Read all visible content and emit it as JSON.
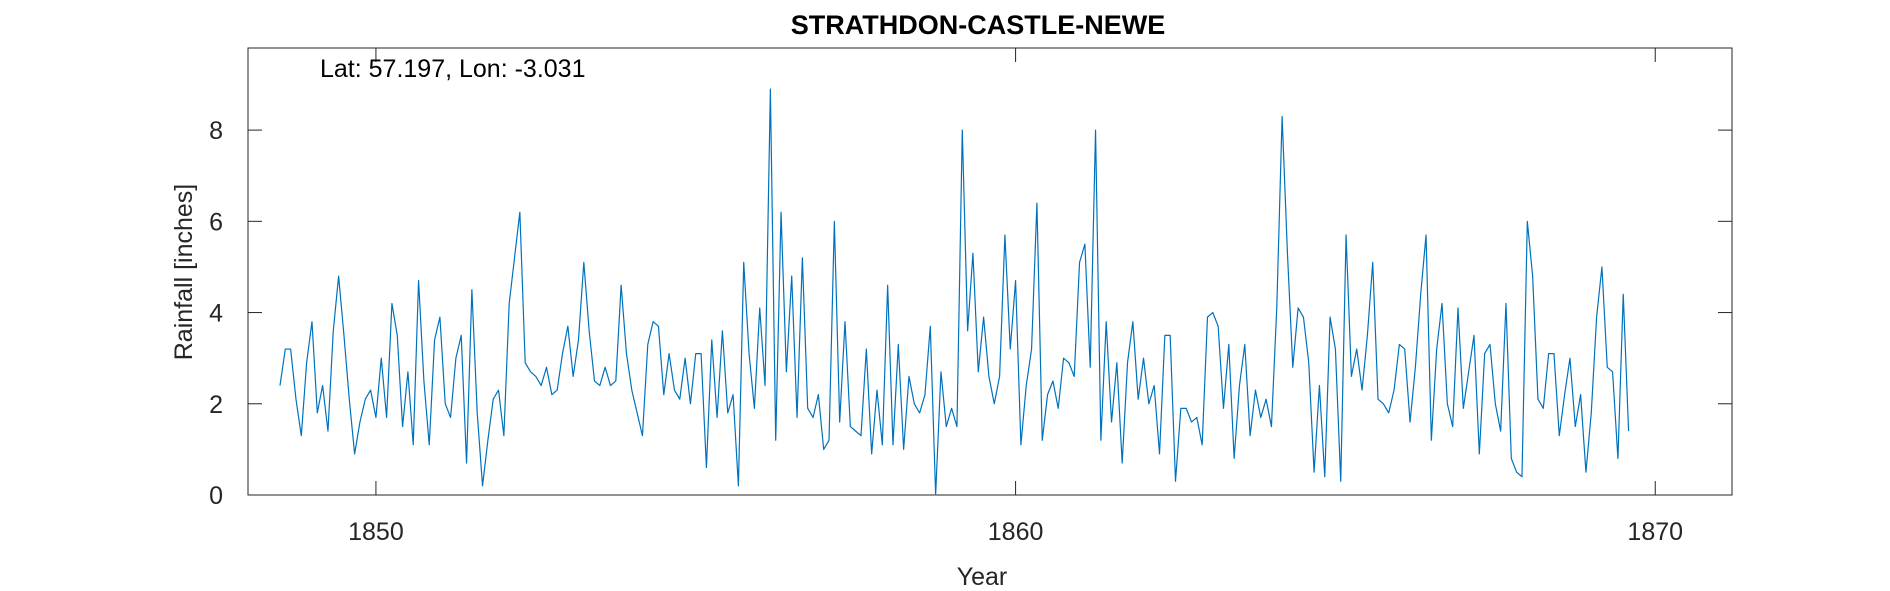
{
  "chart_data": {
    "type": "line",
    "title": "STRATHDON-CASTLE-NEWE",
    "annotation": "Lat: 57.197, Lon: -3.031",
    "xlabel": "Year",
    "ylabel": "Rainfall [inches]",
    "xlim": [
      1848,
      1871.2
    ],
    "ylim": [
      0,
      9.8
    ],
    "xticks": [
      1850,
      1860,
      1870
    ],
    "xtick_labels": [
      "1850",
      "1860",
      "1870"
    ],
    "yticks": [
      0,
      2,
      4,
      6,
      8
    ],
    "ytick_labels": [
      "0",
      "2",
      "4",
      "6",
      "8"
    ],
    "grid": false,
    "series_color": "#0072BD",
    "x_start": 1848.5,
    "x_step": 0.083333,
    "series": [
      {
        "values": [
          2.4,
          3.2,
          3.2,
          2.1,
          1.3,
          2.9,
          3.8,
          1.8,
          2.4,
          1.4,
          3.6,
          4.8,
          3.5,
          2.1,
          0.9,
          1.6,
          2.1,
          2.3,
          1.7,
          3.0,
          1.7,
          4.2,
          3.5,
          1.5,
          2.7,
          1.1,
          4.7,
          2.5,
          1.1,
          3.4,
          3.9,
          2.0,
          1.7,
          3.0,
          3.5,
          0.7,
          4.5,
          1.8,
          0.2,
          1.2,
          2.1,
          2.3,
          1.3,
          4.2,
          5.2,
          6.2,
          2.9,
          2.7,
          2.6,
          2.4,
          2.8,
          2.2,
          2.3,
          3.1,
          3.7,
          2.6,
          3.4,
          5.1,
          3.6,
          2.5,
          2.4,
          2.8,
          2.4,
          2.5,
          4.6,
          3.1,
          2.3,
          1.8,
          1.3,
          3.3,
          3.8,
          3.7,
          2.2,
          3.1,
          2.3,
          2.1,
          3.0,
          2.0,
          3.1,
          3.1,
          0.6,
          3.4,
          1.7,
          3.6,
          1.8,
          2.2,
          0.2,
          5.1,
          3.1,
          1.9,
          4.1,
          2.4,
          8.9,
          1.2,
          6.2,
          2.7,
          4.8,
          1.7,
          5.2,
          1.9,
          1.7,
          2.2,
          1.0,
          1.2,
          6.0,
          1.6,
          3.8,
          1.5,
          1.4,
          1.3,
          3.2,
          0.9,
          2.3,
          1.1,
          4.6,
          1.1,
          3.3,
          1.0,
          2.6,
          2.0,
          1.8,
          2.2,
          3.7,
          0.0,
          2.7,
          1.5,
          1.9,
          1.5,
          8.0,
          3.6,
          5.3,
          2.7,
          3.9,
          2.6,
          2.0,
          2.6,
          5.7,
          3.2,
          4.7,
          1.1,
          2.4,
          3.2,
          6.4,
          1.2,
          2.2,
          2.5,
          1.9,
          3.0,
          2.9,
          2.6,
          5.1,
          5.5,
          2.8,
          8.0,
          1.2,
          3.8,
          1.6,
          2.9,
          0.7,
          2.9,
          3.8,
          2.1,
          3.0,
          2.0,
          2.4,
          0.9,
          3.5,
          3.5,
          0.3,
          1.9,
          1.9,
          1.6,
          1.7,
          1.1,
          3.9,
          4.0,
          3.7,
          1.9,
          3.3,
          0.8,
          2.4,
          3.3,
          1.3,
          2.3,
          1.7,
          2.1,
          1.5,
          4.1,
          8.3,
          5.3,
          2.8,
          4.1,
          3.9,
          2.9,
          0.5,
          2.4,
          0.4,
          3.9,
          3.2,
          0.3,
          5.7,
          2.6,
          3.2,
          2.3,
          3.5,
          5.1,
          2.1,
          2.0,
          1.8,
          2.3,
          3.3,
          3.2,
          1.6,
          2.8,
          4.4,
          5.7,
          1.2,
          3.2,
          4.2,
          2.0,
          1.5,
          4.1,
          1.9,
          2.7,
          3.5,
          0.9,
          3.1,
          3.3,
          2.0,
          1.4,
          4.2,
          0.8,
          0.5,
          0.4,
          6.0,
          4.8,
          2.1,
          1.9,
          3.1,
          3.1,
          1.3,
          2.2,
          3.0,
          1.5,
          2.2,
          0.5,
          1.8,
          3.9,
          5.0,
          2.8,
          2.7,
          0.8,
          4.4,
          1.4
        ]
      }
    ]
  }
}
